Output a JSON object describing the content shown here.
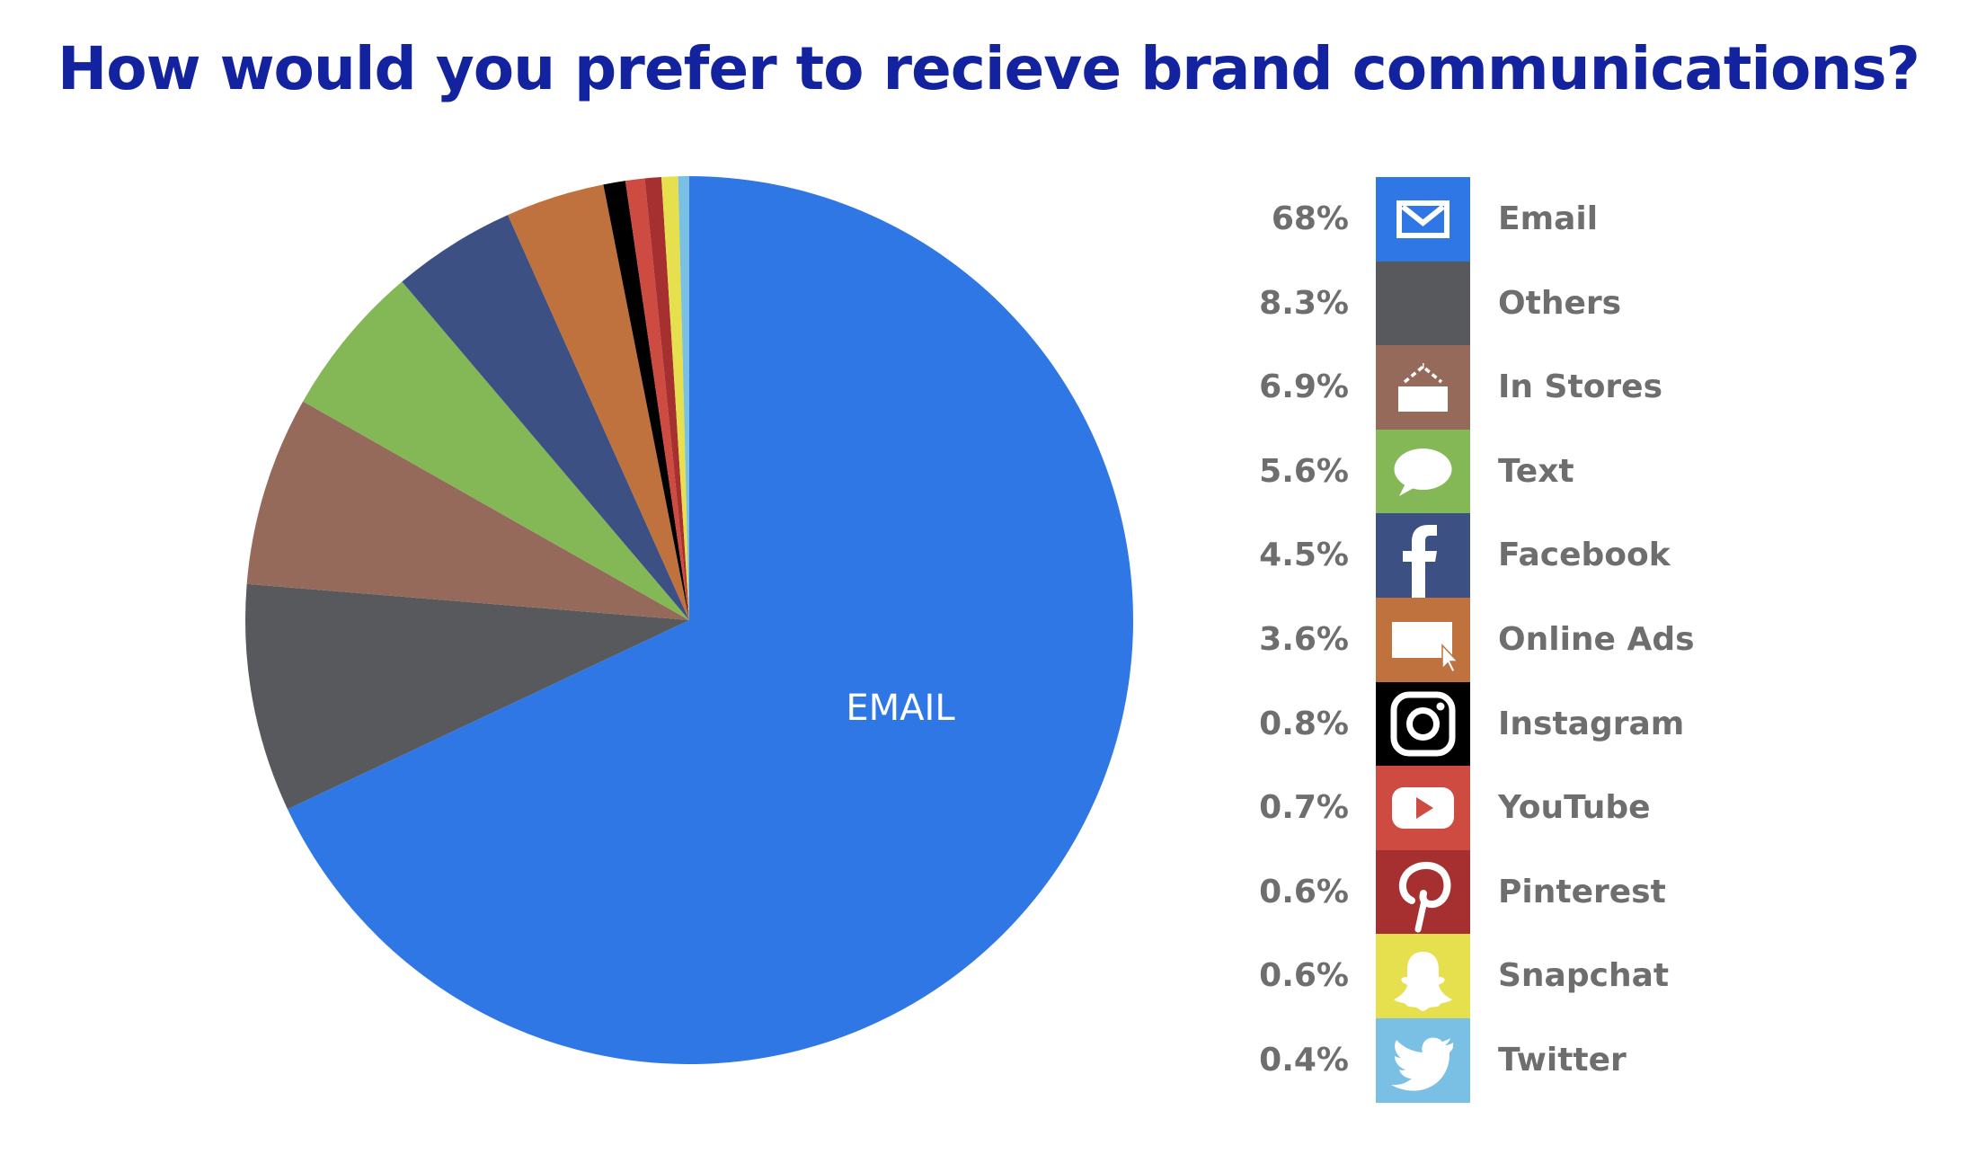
{
  "chart_data": {
    "type": "pie",
    "title": "How would you prefer to recieve brand communications?",
    "slice_label": "EMAIL",
    "slices": [
      {
        "label": "Email",
        "value": 68,
        "display": "68%",
        "color": "#3077e6",
        "icon": "envelope-icon"
      },
      {
        "label": "Others",
        "value": 8.3,
        "display": "8.3%",
        "color": "#58595d",
        "icon": null
      },
      {
        "label": "In Stores",
        "value": 6.9,
        "display": "6.9%",
        "color": "#966a5a",
        "icon": "storefront-icon"
      },
      {
        "label": "Text",
        "value": 5.6,
        "display": "5.6%",
        "color": "#84b756",
        "icon": "speech-bubble-icon"
      },
      {
        "label": "Facebook",
        "value": 4.5,
        "display": "4.5%",
        "color": "#3d5083",
        "icon": "facebook-icon"
      },
      {
        "label": "Online Ads",
        "value": 3.6,
        "display": "3.6%",
        "color": "#bf723d",
        "icon": "browser-cursor-icon"
      },
      {
        "label": "Instagram",
        "value": 0.8,
        "display": "0.8%",
        "color": "#000000",
        "icon": "instagram-icon"
      },
      {
        "label": "YouTube",
        "value": 0.7,
        "display": "0.7%",
        "color": "#cd4b40",
        "icon": "youtube-icon"
      },
      {
        "label": "Pinterest",
        "value": 0.6,
        "display": "0.6%",
        "color": "#a5302f",
        "icon": "pinterest-icon"
      },
      {
        "label": "Snapchat",
        "value": 0.6,
        "display": "0.6%",
        "color": "#e6e04e",
        "icon": "snapchat-icon"
      },
      {
        "label": "Twitter",
        "value": 0.4,
        "display": "0.4%",
        "color": "#79c0e4",
        "icon": "twitter-icon"
      }
    ],
    "legend_position": "right"
  }
}
